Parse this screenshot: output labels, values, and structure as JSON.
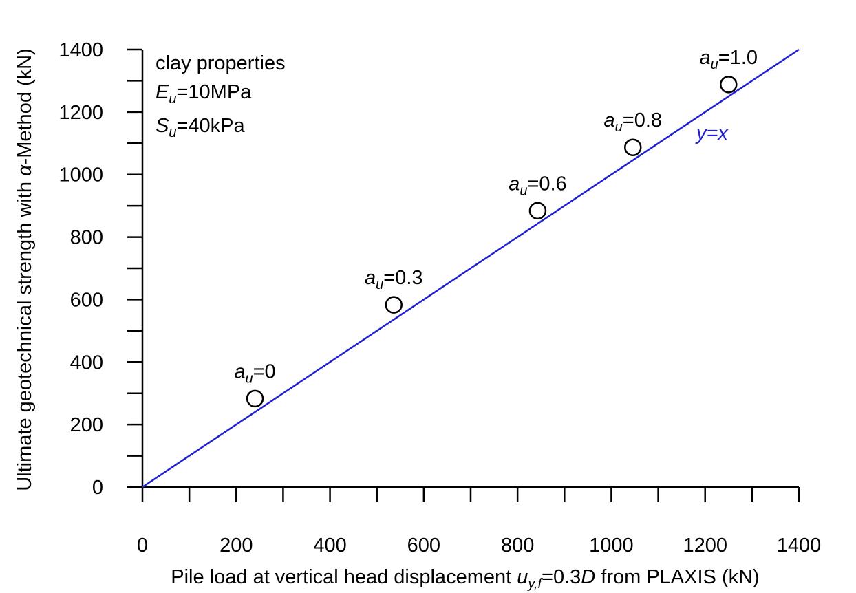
{
  "chart_data": {
    "type": "scatter",
    "xlabel": {
      "pre": "Pile load at vertical head displacement ",
      "var": "u",
      "sub": "y,f",
      "mid": "=0.3",
      "var2": "D",
      "post": " from PLAXIS (kN)"
    },
    "ylabel": {
      "pre": "Ultimate geotechnical strength with ",
      "var": "α",
      "post": "-Method (kN)"
    },
    "xlim": [
      0,
      1400
    ],
    "ylim": [
      0,
      1400
    ],
    "xticks": [
      "0",
      "200",
      "400",
      "600",
      "800",
      "1000",
      "1200",
      "1400"
    ],
    "yticks": [
      "0",
      "200",
      "400",
      "600",
      "800",
      "1000",
      "1200",
      "1400"
    ],
    "minor_tick_step": 100,
    "reference_line": {
      "label": "y=x",
      "color": "#1f1fd6",
      "from": [
        0,
        0
      ],
      "to": [
        1400,
        1400
      ]
    },
    "points": [
      {
        "x": 240,
        "y": 283,
        "label_var": "a",
        "label_sub": "u",
        "label_val": "=0"
      },
      {
        "x": 536,
        "y": 583,
        "label_var": "a",
        "label_sub": "u",
        "label_val": "=0.3"
      },
      {
        "x": 843,
        "y": 884,
        "label_var": "a",
        "label_sub": "u",
        "label_val": "=0.6"
      },
      {
        "x": 1046,
        "y": 1087,
        "label_var": "a",
        "label_sub": "u",
        "label_val": "=0.8"
      },
      {
        "x": 1250,
        "y": 1288,
        "label_var": "a",
        "label_sub": "u",
        "label_val": "=1.0"
      }
    ],
    "annotation": {
      "line1": "clay properties",
      "line2": {
        "var": "E",
        "sub": "u",
        "val": "=10MPa"
      },
      "line3": {
        "var": "S",
        "sub": "u",
        "val": "=40kPa"
      }
    },
    "grid": false,
    "legend": "none"
  }
}
